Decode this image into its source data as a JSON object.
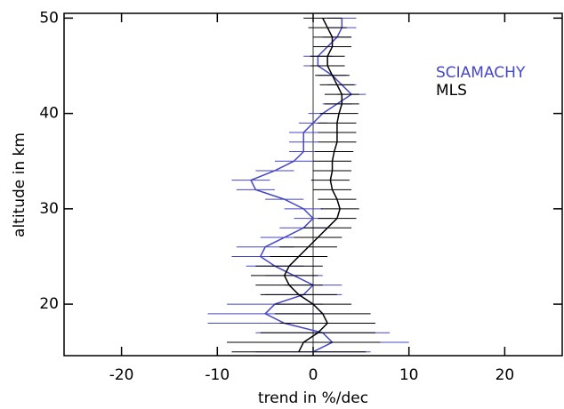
{
  "chart_data": {
    "type": "profile",
    "xlabel": "trend in %/dec",
    "ylabel": "altitude in km",
    "xlim": [
      -26,
      26
    ],
    "ylim": [
      14.6,
      50.5
    ],
    "xticks": [
      -20,
      -10,
      0,
      10,
      20
    ],
    "yticks": [
      20,
      30,
      40,
      50
    ],
    "y": [
      15,
      16,
      17,
      18,
      19,
      20,
      21,
      22,
      23,
      24,
      25,
      26,
      27,
      28,
      29,
      30,
      31,
      32,
      33,
      34,
      35,
      36,
      37,
      38,
      39,
      40,
      41,
      42,
      43,
      44,
      45,
      46,
      47,
      48,
      49,
      50
    ],
    "legend": "upper right",
    "series": [
      {
        "name": "SCIAMACHY",
        "color": "#4646c8",
        "values": [
          0,
          2,
          1,
          -3,
          -5,
          -4,
          -1,
          0,
          -2,
          -4,
          -5.5,
          -5,
          -3,
          -1,
          0,
          -1,
          -3,
          -6,
          -6.5,
          -4,
          -2,
          -1,
          -1,
          -1,
          0,
          1,
          2.5,
          4,
          3,
          2,
          0.5,
          0.5,
          1.5,
          2.5,
          3,
          3
        ],
        "errors": [
          6,
          8,
          7,
          8,
          6,
          5,
          4,
          3,
          3,
          3,
          3,
          3,
          2.5,
          2.5,
          2,
          2,
          2,
          2,
          2,
          2,
          2,
          1.5,
          1.5,
          1.5,
          1.5,
          1.5,
          1.5,
          1.5,
          1.5,
          1.5,
          1.5,
          1.5,
          1.5,
          1.5,
          1.5,
          1.5
        ]
      },
      {
        "name": "MLS",
        "color": "#000000",
        "values": [
          -1.5,
          -1,
          0.5,
          1.5,
          1,
          0,
          -1.5,
          -2.5,
          -3,
          -2.5,
          -1.5,
          -0.5,
          0.5,
          1.5,
          2.5,
          2.8,
          2.5,
          2,
          1.8,
          2,
          2,
          2.2,
          2.5,
          2.5,
          2.5,
          2.7,
          3,
          3,
          2.5,
          2,
          1.5,
          1.5,
          2,
          2,
          1.5,
          1
        ],
        "errors": [
          7,
          8,
          6,
          5,
          5,
          4,
          4,
          3.5,
          3.5,
          3.5,
          3,
          3,
          2.5,
          2.5,
          2,
          2,
          2,
          2,
          2,
          2,
          2,
          2,
          2,
          2,
          2,
          2,
          1.8,
          1.8,
          1.8,
          1.8,
          1.8,
          1.8,
          2,
          2,
          2,
          2
        ]
      }
    ]
  }
}
